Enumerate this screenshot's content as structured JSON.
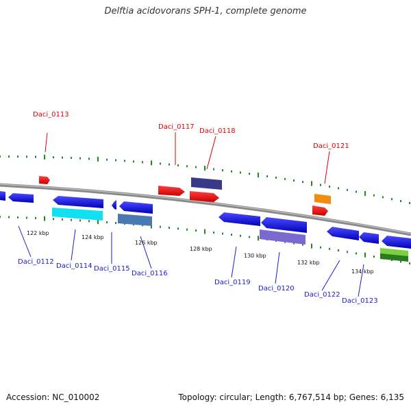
{
  "title": "Delftia acidovorans SPH-1, complete genome",
  "footer": {
    "accession": "Accession: NC_010002",
    "summary": "Topology: circular; Length: 6,767,514 bp; Genes: 6,135"
  },
  "colors": {
    "backbone": "#8a8a8a",
    "tick_marks": "#228822",
    "label_forward": "#e00000",
    "label_reverse": "#1a1ad0"
  },
  "scale_labels": [
    "122 kbp",
    "124 kbp",
    "126 kbp",
    "128 kbp",
    "130 kbp",
    "132 kbp",
    "134 kbp"
  ],
  "gene_labels_forward": [
    "Daci_0113",
    "Daci_0117",
    "Daci_0118",
    "Daci_0121"
  ],
  "gene_labels_reverse": [
    "Daci_0112",
    "Daci_0114",
    "Daci_0115",
    "Daci_0116",
    "Daci_0119",
    "Daci_0120",
    "Daci_0122",
    "Daci_0123"
  ]
}
